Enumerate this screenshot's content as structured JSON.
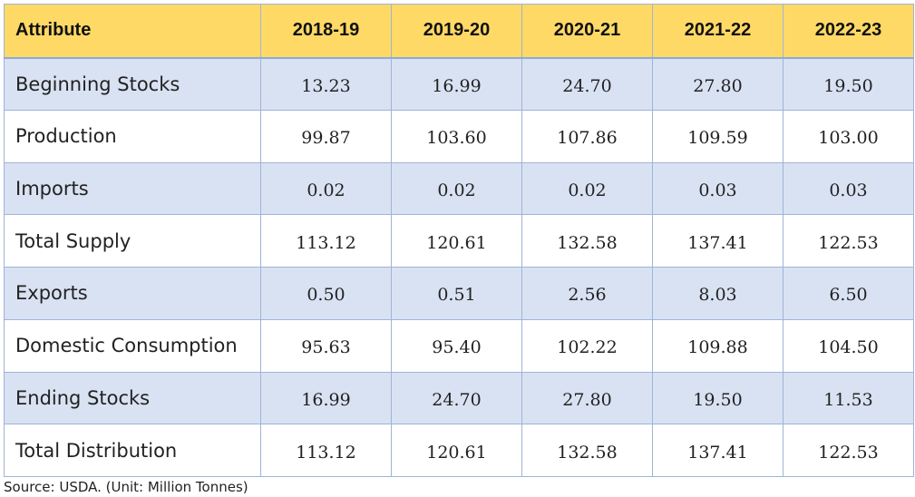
{
  "table": {
    "columns": [
      "Attribute",
      "2018-19",
      "2019-20",
      "2020-21",
      "2021-22",
      "2022-23"
    ],
    "rows": [
      {
        "attribute": "Beginning Stocks",
        "values": [
          "13.23",
          "16.99",
          "24.70",
          "27.80",
          "19.50"
        ]
      },
      {
        "attribute": "Production",
        "values": [
          "99.87",
          "103.60",
          "107.86",
          "109.59",
          "103.00"
        ]
      },
      {
        "attribute": "Imports",
        "values": [
          "0.02",
          "0.02",
          "0.02",
          "0.03",
          "0.03"
        ]
      },
      {
        "attribute": "Total Supply",
        "values": [
          "113.12",
          "120.61",
          "132.58",
          "137.41",
          "122.53"
        ]
      },
      {
        "attribute": "Exports",
        "values": [
          "0.50",
          "0.51",
          "2.56",
          "8.03",
          "6.50"
        ]
      },
      {
        "attribute": "Domestic Consumption",
        "values": [
          "95.63",
          "95.40",
          "102.22",
          "109.88",
          "104.50"
        ]
      },
      {
        "attribute": "Ending Stocks",
        "values": [
          "16.99",
          "24.70",
          "27.80",
          "19.50",
          "11.53"
        ]
      },
      {
        "attribute": "Total Distribution",
        "values": [
          "113.12",
          "120.61",
          "132.58",
          "137.41",
          "122.53"
        ]
      }
    ]
  },
  "source_note": "Source: USDA. (Unit: Million Tonnes)",
  "colors": {
    "header_background": "#ffd966",
    "band_row_background": "#d9e2f3",
    "plain_row_background": "#ffffff",
    "grid_line": "#9fb4d6"
  }
}
